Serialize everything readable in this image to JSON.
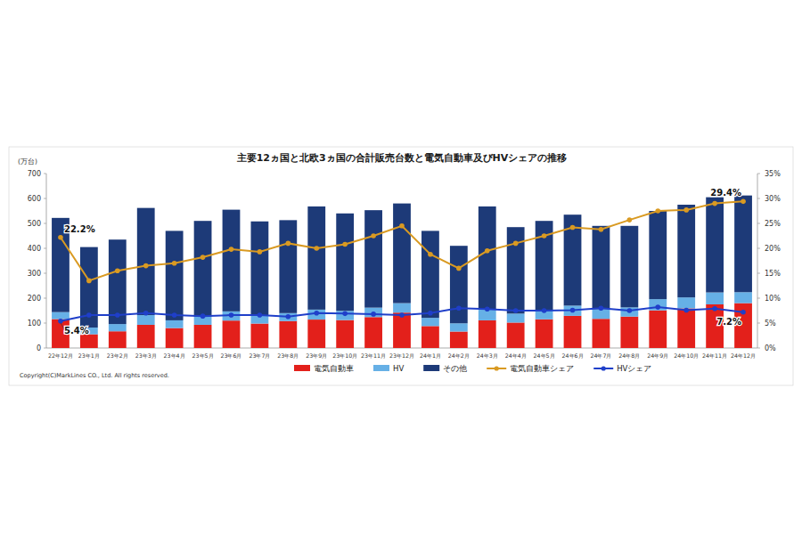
{
  "chart_data": {
    "type": "bar",
    "title": "主要12ヵ国と北欧3ヵ国の合計販売台数と電気自動車及びHVシェアの推移",
    "y_label": "(万台)",
    "footnote": "Copyright(C)MarkLines CO., Ltd. All rights reserved.",
    "categories": [
      "22年12月",
      "23年1月",
      "23年2月",
      "23年3月",
      "23年4月",
      "23年5月",
      "23年6月",
      "23年7月",
      "23年8月",
      "23年9月",
      "23年10月",
      "23年11月",
      "23年12月",
      "24年1月",
      "24年2月",
      "24年3月",
      "24年4月",
      "24年5月",
      "24年6月",
      "24年7月",
      "24年8月",
      "24年9月",
      "24年10月",
      "24年11月",
      "24年12月"
    ],
    "stacked": true,
    "grid": false,
    "legend": "bottom",
    "ylim": [
      0,
      700
    ],
    "yticks": [
      0,
      100,
      200,
      300,
      400,
      500,
      600,
      700
    ],
    "y2lim": [
      0,
      35
    ],
    "y2ticks": [
      {
        "value": 0,
        "label": "0%"
      },
      {
        "value": 5,
        "label": "5%"
      },
      {
        "value": 10,
        "label": "10%"
      },
      {
        "value": 15,
        "label": "15%"
      },
      {
        "value": 20,
        "label": "20%"
      },
      {
        "value": 25,
        "label": "25%"
      },
      {
        "value": 30,
        "label": "30%"
      },
      {
        "value": 35,
        "label": "35%"
      }
    ],
    "series": [
      {
        "name": "電気自動車",
        "type": "bar",
        "color": "#e3201b",
        "values": [
          116,
          55,
          67,
          93,
          80,
          93,
          110,
          98,
          108,
          114,
          112,
          124,
          142,
          88,
          66,
          111,
          102,
          115,
          129,
          117,
          126,
          151,
          159,
          175,
          180
        ]
      },
      {
        "name": "HV",
        "type": "bar",
        "color": "#66b0e6",
        "values": [
          28,
          27,
          29,
          39,
          31,
          33,
          37,
          34,
          32,
          40,
          37,
          38,
          38,
          33,
          33,
          44,
          36,
          38,
          41,
          39,
          37,
          45,
          44,
          48,
          44
        ]
      },
      {
        "name": "その他",
        "type": "bar",
        "color": "#1d3a78",
        "values": [
          378,
          323,
          339,
          430,
          359,
          384,
          408,
          376,
          373,
          414,
          391,
          391,
          400,
          349,
          311,
          413,
          347,
          357,
          365,
          334,
          327,
          354,
          372,
          382,
          388
        ]
      },
      {
        "name": "電気自動車シェア",
        "type": "line",
        "axis": "y2",
        "color": "#d99a22",
        "marker": "circle",
        "values": [
          22.2,
          13.5,
          15.5,
          16.5,
          17,
          18.2,
          19.8,
          19.3,
          21,
          20,
          20.8,
          22.5,
          24.5,
          18.8,
          16,
          19.5,
          21,
          22.5,
          24.2,
          23.8,
          25.7,
          27.5,
          27.7,
          29,
          29.4
        ]
      },
      {
        "name": "HVシェア",
        "type": "line",
        "axis": "y2",
        "color": "#1f3fc9",
        "marker": "circle",
        "values": [
          5.4,
          6.6,
          6.6,
          7,
          6.6,
          6.4,
          6.6,
          6.6,
          6.3,
          7,
          6.9,
          6.8,
          6.6,
          7,
          8,
          7.8,
          7.5,
          7.5,
          7.6,
          8,
          7.5,
          8.2,
          7.6,
          7.9,
          7.2
        ]
      }
    ],
    "annotations": [
      {
        "text": "22.2%",
        "x": "22年12月",
        "y": 22.2,
        "axis": "y2"
      },
      {
        "text": "5.4%",
        "x": "22年12月",
        "y": 5.4,
        "axis": "y2"
      },
      {
        "text": "29.4%",
        "x": "24年12月",
        "y": 29.4,
        "axis": "y2"
      },
      {
        "text": "7.2%",
        "x": "24年12月",
        "y": 7.2,
        "axis": "y2"
      }
    ]
  }
}
